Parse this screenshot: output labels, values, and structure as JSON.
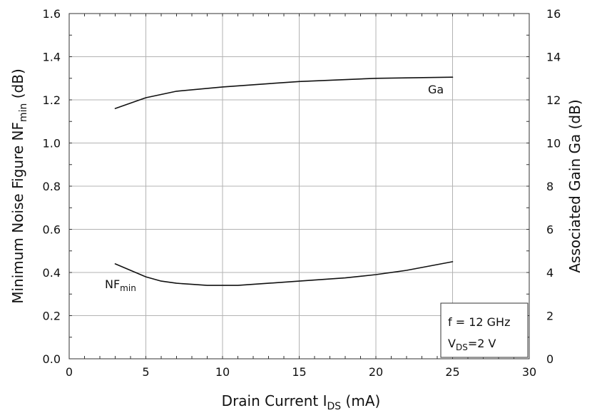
{
  "chart_data": {
    "type": "line",
    "x_axis": {
      "label": "Drain Current I",
      "label_sub": "DS",
      "label_suffix": " (mA)",
      "range": [
        0,
        30
      ],
      "ticks": [
        "0",
        "5",
        "10",
        "15",
        "20",
        "25",
        "30"
      ],
      "minor_step": 1
    },
    "y_left_axis": {
      "label": "Minimum Noise Figure NF",
      "label_sub": "min",
      "label_suffix": " (dB)",
      "range": [
        0,
        1.6
      ],
      "ticks": [
        "0.0",
        "0.2",
        "0.4",
        "0.6",
        "0.8",
        "1.0",
        "1.2",
        "1.4",
        "1.6"
      ],
      "minor_step": 0.1
    },
    "y_right_axis": {
      "label": "Associated Gain Ga (dB)",
      "range": [
        0,
        16
      ],
      "ticks": [
        "0",
        "2",
        "4",
        "6",
        "8",
        "10",
        "12",
        "14",
        "16"
      ]
    },
    "grid": true,
    "series": [
      {
        "name": "Ga",
        "axis": "right",
        "x": [
          3,
          5,
          7,
          10,
          13,
          15,
          20,
          25
        ],
        "y": [
          11.6,
          12.1,
          12.4,
          12.6,
          12.75,
          12.85,
          13.0,
          13.05
        ]
      },
      {
        "name": "NF",
        "name_sub": "min",
        "axis": "left",
        "x": [
          3,
          4,
          5,
          6,
          7,
          8,
          9,
          10,
          11,
          13,
          15,
          18,
          20,
          22,
          25
        ],
        "y": [
          0.44,
          0.41,
          0.38,
          0.36,
          0.35,
          0.345,
          0.34,
          0.34,
          0.34,
          0.35,
          0.36,
          0.375,
          0.39,
          0.41,
          0.45
        ]
      }
    ],
    "annotations": {
      "frequency": "f = 12 GHz",
      "vds_prefix": "V",
      "vds_sub": "DS",
      "vds_suffix": "=2 V"
    }
  }
}
